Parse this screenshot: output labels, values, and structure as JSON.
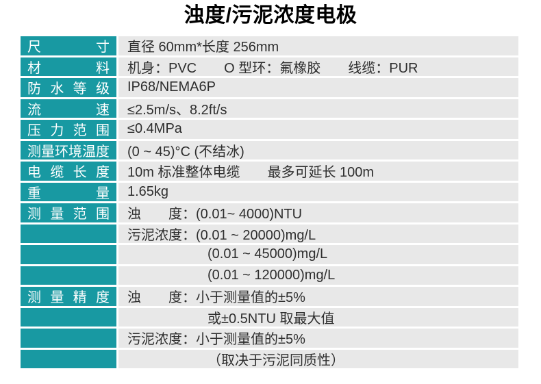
{
  "title": "浊度/污泥浓度电极",
  "colors": {
    "label_bg": "#1899A2",
    "value_bg": "#E8E8E8",
    "label_text": "#FFFFFF",
    "value_text": "#2E2E2E",
    "title_text": "#000000",
    "page_bg": "#FFFFFF"
  },
  "table": {
    "rows": [
      {
        "label": "尺寸",
        "value": "直径 60mm*长度 256mm"
      },
      {
        "label": "材料",
        "value": "机身：PVC　　O 型环：氟橡胶　　线缆：PUR"
      },
      {
        "label": "防水等级",
        "value": "IP68/NEMA6P"
      },
      {
        "label": "流速",
        "value": "≤2.5m/s、8.2ft/s"
      },
      {
        "label": "压力范围",
        "value": "≤0.4MPa"
      },
      {
        "label": "测量环境温度",
        "value": "(0 ~ 45)°C (不结冰)"
      },
      {
        "label": "电缆长度",
        "value": "10m 标准整体电缆　　最多可延长 100m"
      },
      {
        "label": "重量",
        "value": "1.65kg"
      },
      {
        "label": "测量范围",
        "value": "浊　　度：(0.01~ 4000)NTU"
      },
      {
        "label": "",
        "value": "污泥浓度：(0.01 ~ 20000)mg/L"
      },
      {
        "label": "",
        "value": "(0.01 ~ 45000)mg/L"
      },
      {
        "label": "",
        "value": "(0.01 ~ 120000)mg/L"
      },
      {
        "label": "测量精度",
        "value": "浊　　度：小于测量值的±5%"
      },
      {
        "label": "",
        "value": "或±0.5NTU 取最大值"
      },
      {
        "label": "",
        "value": "污泥浓度：小于测量值的±5%"
      },
      {
        "label": "",
        "value": "（取决于污泥同质性）"
      }
    ]
  }
}
